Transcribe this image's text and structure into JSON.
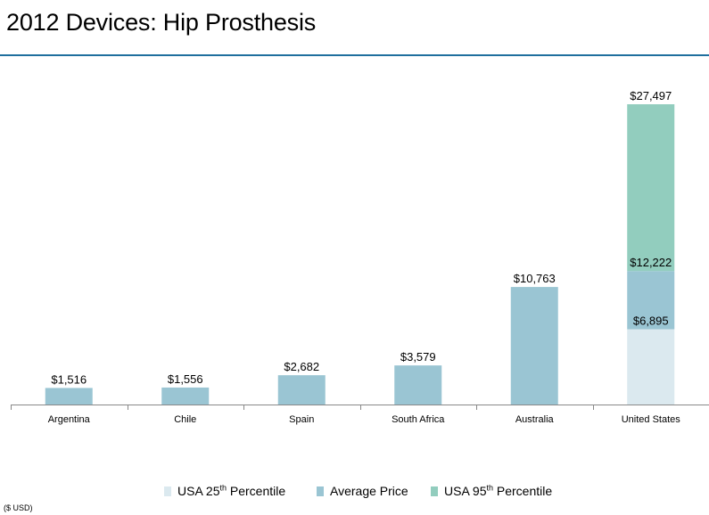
{
  "header": {
    "title": "2012 Devices: Hip Prosthesis"
  },
  "colors": {
    "accent_rule": "#1f6f9e",
    "p25": "#dbe9ef",
    "avg": "#9ac5d3",
    "p95": "#92cdbe"
  },
  "chart_data": {
    "type": "bar",
    "categories": [
      "Argentina",
      "Chile",
      "Spain",
      "South Africa",
      "Australia",
      "United States"
    ],
    "series": [
      {
        "name": "Average Price",
        "values": [
          1516,
          1556,
          2682,
          3579,
          10763,
          null
        ]
      }
    ],
    "us_stack": {
      "p25": 6895,
      "average": 12222,
      "p95": 27497
    },
    "value_labels": [
      "$1,516",
      "$1,556",
      "$2,682",
      "$3,579",
      "$10,763"
    ],
    "us_labels": {
      "p25": "$6,895",
      "average": "$12,222",
      "p95": "$27,497"
    },
    "ylim": [
      0,
      27497
    ],
    "grid": false,
    "legend_position": "bottom"
  },
  "legend": {
    "p25_prefix": "USA 25",
    "p25_sup": "th",
    "p25_suffix": " Percentile",
    "avg": "Average Price",
    "p95_prefix": "USA  95",
    "p95_sup": "th",
    "p95_suffix": " Percentile"
  },
  "footer": {
    "units": "($ USD)"
  }
}
